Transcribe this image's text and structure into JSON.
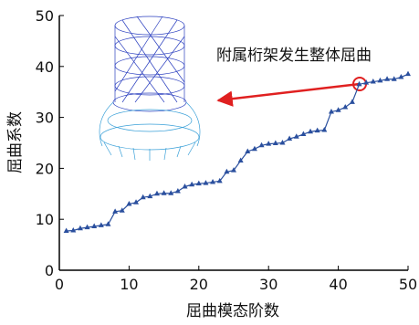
{
  "chart_data": {
    "type": "line",
    "x_label": "屈曲模态阶数",
    "y_label": "屈曲系数",
    "annotation": "附属桁架发生整体屈曲",
    "x": [
      1,
      2,
      3,
      4,
      5,
      6,
      7,
      8,
      9,
      10,
      11,
      12,
      13,
      14,
      15,
      16,
      17,
      18,
      19,
      20,
      21,
      22,
      23,
      24,
      25,
      26,
      27,
      28,
      29,
      30,
      31,
      32,
      33,
      34,
      35,
      36,
      37,
      38,
      39,
      40,
      41,
      42,
      43,
      44,
      45,
      46,
      47,
      48,
      49,
      50
    ],
    "series": [
      {
        "color": "#2a4f9e",
        "values": [
          7.7,
          7.8,
          8.2,
          8.4,
          8.6,
          8.8,
          9.0,
          11.5,
          11.7,
          13.0,
          13.3,
          14.3,
          14.5,
          15.0,
          15.1,
          15.1,
          15.5,
          16.4,
          16.8,
          17.0,
          17.1,
          17.3,
          17.5,
          19.3,
          19.6,
          21.5,
          23.3,
          23.8,
          24.5,
          24.8,
          24.9,
          25.0,
          25.8,
          26.2,
          26.7,
          27.2,
          27.4,
          27.5,
          31.1,
          31.4,
          32.0,
          33.0,
          36.5,
          36.8,
          37.0,
          37.2,
          37.5,
          37.5,
          37.9,
          38.5
        ]
      }
    ],
    "xlim": [
      0,
      50
    ],
    "xticks": [
      0,
      10,
      20,
      30,
      40,
      50
    ],
    "ylim": [
      0,
      50
    ],
    "yticks": [
      0,
      10,
      20,
      30,
      40,
      50
    ]
  }
}
